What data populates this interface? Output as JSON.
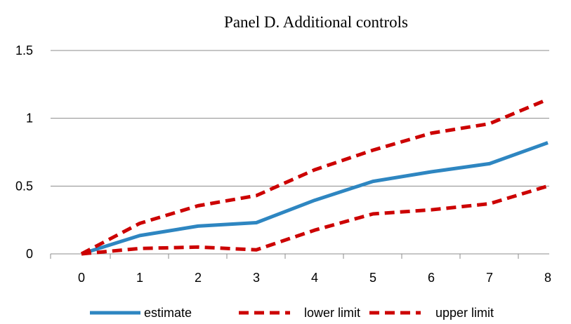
{
  "chart_data": {
    "type": "line",
    "title": "Panel D. Additional controls",
    "xlabel": "",
    "ylabel": "",
    "categories": [
      "0",
      "1",
      "2",
      "3",
      "4",
      "5",
      "6",
      "7",
      "8"
    ],
    "x": [
      0,
      1,
      2,
      3,
      4,
      5,
      6,
      7,
      8
    ],
    "yticks": [
      "0",
      "0.5",
      "1",
      "1.5"
    ],
    "ylim": [
      0,
      1.5
    ],
    "grid": "horizontal",
    "legend_position": "bottom",
    "series": [
      {
        "name": "estimate",
        "color": "#2E86C1",
        "style": "solid",
        "values": [
          0,
          0.135,
          0.205,
          0.23,
          0.395,
          0.535,
          0.605,
          0.665,
          0.82
        ]
      },
      {
        "name": "lower limit",
        "color": "#CC0000",
        "style": "dashed",
        "values": [
          0,
          0.04,
          0.05,
          0.03,
          0.175,
          0.295,
          0.325,
          0.37,
          0.5
        ]
      },
      {
        "name": "upper limit",
        "color": "#CC0000",
        "style": "dashed",
        "values": [
          0,
          0.225,
          0.355,
          0.43,
          0.62,
          0.765,
          0.89,
          0.96,
          1.14
        ]
      }
    ]
  }
}
